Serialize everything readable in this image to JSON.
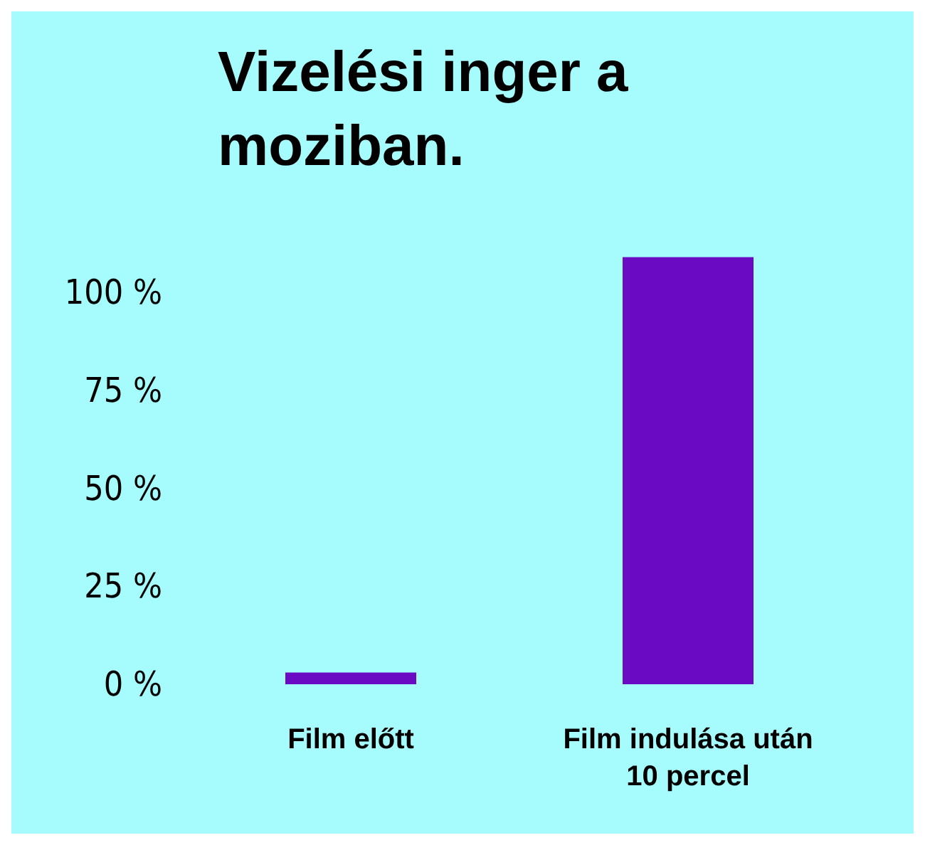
{
  "chart_data": {
    "type": "bar",
    "title": "Vizelési inger a\nmoziban.",
    "categories": [
      "Film előtt",
      "Film indulása után\n10 percel"
    ],
    "values": [
      3,
      109
    ],
    "color": "#6a0bc3",
    "ylim": [
      0,
      110
    ],
    "yticks": [
      {
        "value": 0,
        "label": "0 %"
      },
      {
        "value": 25,
        "label": "25 %"
      },
      {
        "value": 50,
        "label": "50 %"
      },
      {
        "value": 75,
        "label": "75 %"
      },
      {
        "value": 100,
        "label": "100 %"
      }
    ],
    "grid": false
  }
}
